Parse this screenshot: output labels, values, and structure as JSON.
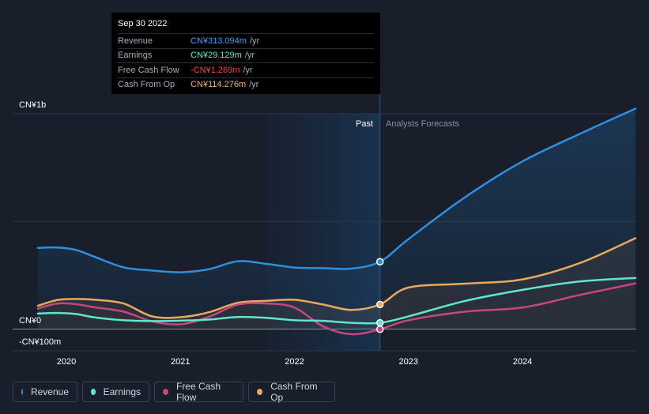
{
  "tooltip": {
    "date": "Sep 30 2022",
    "rows": [
      {
        "label": "Revenue",
        "value": "CN¥313.094m",
        "unit": "/yr",
        "color": "#3ba0f0"
      },
      {
        "label": "Earnings",
        "value": "CN¥29.129m",
        "unit": "/yr",
        "color": "#5ee6cf"
      },
      {
        "label": "Free Cash Flow",
        "value": "-CN¥1.269m",
        "unit": "/yr",
        "color": "#f0414f"
      },
      {
        "label": "Cash From Op",
        "value": "CN¥114.276m",
        "unit": "/yr",
        "color": "#f0b66a"
      }
    ]
  },
  "legend": [
    {
      "label": "Revenue",
      "color": "#2d8fe0"
    },
    {
      "label": "Earnings",
      "color": "#5ee6cf"
    },
    {
      "label": "Free Cash Flow",
      "color": "#c8457f"
    },
    {
      "label": "Cash From Op",
      "color": "#e9a95c"
    }
  ],
  "chart_data": {
    "type": "line",
    "y_tick_labels": [
      "CN¥1b",
      "CN¥0",
      "-CN¥100m"
    ],
    "x_tick_labels": [
      "2020",
      "2021",
      "2022",
      "2023",
      "2024"
    ],
    "region_labels": {
      "past": "Past",
      "forecast": "Analysts Forecasts"
    },
    "ylim": [
      -100,
      1000
    ],
    "y_unit": "CN¥m",
    "gridlines": [
      1000,
      500,
      0
    ],
    "past_region": {
      "start": 2021.75,
      "end": 2022.75
    },
    "divider_x": 2022.75,
    "series": [
      {
        "name": "Revenue",
        "color": "#2d8fe0",
        "area": true,
        "points": [
          [
            2019.75,
            377
          ],
          [
            2019.92,
            379
          ],
          [
            2020.08,
            368
          ],
          [
            2020.25,
            335
          ],
          [
            2020.5,
            287
          ],
          [
            2020.75,
            272
          ],
          [
            2021.0,
            264
          ],
          [
            2021.25,
            278
          ],
          [
            2021.5,
            315
          ],
          [
            2021.75,
            303
          ],
          [
            2022.0,
            286
          ],
          [
            2022.25,
            283
          ],
          [
            2022.5,
            281
          ],
          [
            2022.75,
            313
          ],
          [
            2023.0,
            418
          ],
          [
            2023.5,
            614
          ],
          [
            2024.0,
            779
          ],
          [
            2024.5,
            906
          ],
          [
            2024.99,
            1024
          ]
        ]
      },
      {
        "name": "Earnings",
        "color": "#5ee6cf",
        "area": false,
        "points": [
          [
            2019.75,
            72
          ],
          [
            2019.92,
            75
          ],
          [
            2020.08,
            70
          ],
          [
            2020.25,
            54
          ],
          [
            2020.5,
            41
          ],
          [
            2020.75,
            37
          ],
          [
            2021.0,
            39
          ],
          [
            2021.25,
            44
          ],
          [
            2021.5,
            56
          ],
          [
            2021.75,
            52
          ],
          [
            2022.0,
            41
          ],
          [
            2022.25,
            38
          ],
          [
            2022.5,
            29
          ],
          [
            2022.75,
            29
          ],
          [
            2023.0,
            59
          ],
          [
            2023.5,
            131
          ],
          [
            2024.0,
            182
          ],
          [
            2024.5,
            221
          ],
          [
            2024.99,
            237
          ]
        ]
      },
      {
        "name": "Free Cash Flow",
        "color": "#c8457f",
        "area": false,
        "points": [
          [
            2019.75,
            95
          ],
          [
            2019.92,
            119
          ],
          [
            2020.08,
            116
          ],
          [
            2020.25,
            101
          ],
          [
            2020.5,
            81
          ],
          [
            2020.75,
            36
          ],
          [
            2021.0,
            22
          ],
          [
            2021.25,
            57
          ],
          [
            2021.5,
            113
          ],
          [
            2021.75,
            119
          ],
          [
            2022.0,
            100
          ],
          [
            2022.25,
            13
          ],
          [
            2022.5,
            -24
          ],
          [
            2022.75,
            -1
          ],
          [
            2023.0,
            41
          ],
          [
            2023.5,
            81
          ],
          [
            2024.0,
            100
          ],
          [
            2024.5,
            158
          ],
          [
            2024.99,
            212
          ]
        ]
      },
      {
        "name": "Cash From Op",
        "color": "#e9a95c",
        "area": true,
        "points": [
          [
            2019.75,
            108
          ],
          [
            2019.92,
            135
          ],
          [
            2020.08,
            140
          ],
          [
            2020.25,
            136
          ],
          [
            2020.5,
            119
          ],
          [
            2020.75,
            59
          ],
          [
            2021.0,
            55
          ],
          [
            2021.25,
            78
          ],
          [
            2021.5,
            122
          ],
          [
            2021.75,
            131
          ],
          [
            2022.0,
            136
          ],
          [
            2022.25,
            114
          ],
          [
            2022.5,
            89
          ],
          [
            2022.75,
            114
          ],
          [
            2023.0,
            193
          ],
          [
            2023.5,
            211
          ],
          [
            2024.0,
            231
          ],
          [
            2024.5,
            306
          ],
          [
            2024.99,
            422
          ]
        ]
      }
    ],
    "tooltip_x": 2022.75
  }
}
